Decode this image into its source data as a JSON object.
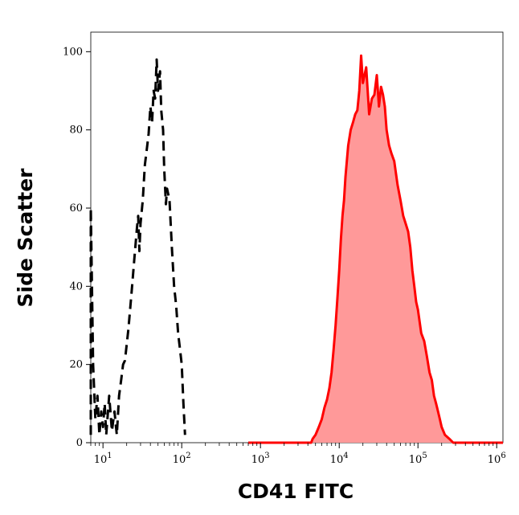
{
  "chart_data": {
    "type": "area",
    "title": "",
    "xlabel": "CD41 FITC",
    "ylabel": "Side Scatter",
    "x_scale": "log",
    "xlim": [
      7,
      1200000
    ],
    "ylim": [
      0,
      105
    ],
    "x_ticks": [
      {
        "value": 10,
        "base": "10",
        "exp": "1"
      },
      {
        "value": 100,
        "base": "10",
        "exp": "2"
      },
      {
        "value": 1000,
        "base": "10",
        "exp": "3"
      },
      {
        "value": 10000,
        "base": "10",
        "exp": "4"
      },
      {
        "value": 100000,
        "base": "10",
        "exp": "5"
      },
      {
        "value": 1000000,
        "base": "10",
        "exp": "6"
      }
    ],
    "y_ticks": [
      {
        "value": 0,
        "label": "0"
      },
      {
        "value": 20,
        "label": "20"
      },
      {
        "value": 40,
        "label": "40"
      },
      {
        "value": 60,
        "label": "60"
      },
      {
        "value": 80,
        "label": "80"
      },
      {
        "value": 100,
        "label": "100"
      }
    ],
    "grid": false,
    "series": [
      {
        "style": "dashed",
        "color": "#000000",
        "fill": "none",
        "points": [
          [
            7,
            2
          ],
          [
            7,
            60
          ],
          [
            7.5,
            20
          ],
          [
            8,
            6
          ],
          [
            8.5,
            12
          ],
          [
            9,
            2
          ],
          [
            9.5,
            8
          ],
          [
            10,
            4
          ],
          [
            10.5,
            10
          ],
          [
            11,
            2
          ],
          [
            12,
            12
          ],
          [
            13,
            3
          ],
          [
            14,
            8
          ],
          [
            15,
            2
          ],
          [
            16,
            12
          ],
          [
            17,
            16
          ],
          [
            18,
            20
          ],
          [
            19,
            21
          ],
          [
            21,
            29
          ],
          [
            23,
            38
          ],
          [
            25,
            47
          ],
          [
            27,
            55
          ],
          [
            28,
            58
          ],
          [
            29,
            49
          ],
          [
            30,
            56
          ],
          [
            32,
            62
          ],
          [
            34,
            71
          ],
          [
            36,
            75
          ],
          [
            38,
            79
          ],
          [
            40,
            86
          ],
          [
            42,
            82
          ],
          [
            44,
            90
          ],
          [
            46,
            88
          ],
          [
            48,
            98
          ],
          [
            50,
            90
          ],
          [
            53,
            95
          ],
          [
            55,
            85
          ],
          [
            58,
            80
          ],
          [
            60,
            70
          ],
          [
            63,
            61
          ],
          [
            65,
            65
          ],
          [
            70,
            62
          ],
          [
            75,
            50
          ],
          [
            80,
            40
          ],
          [
            85,
            35
          ],
          [
            90,
            28
          ],
          [
            95,
            24
          ],
          [
            100,
            20
          ],
          [
            105,
            10
          ],
          [
            110,
            2
          ]
        ]
      },
      {
        "style": "solid",
        "color": "#ff0000",
        "fill": "#ff9999",
        "points": [
          [
            700,
            0
          ],
          [
            4400,
            0
          ],
          [
            4600,
            1
          ],
          [
            5000,
            2
          ],
          [
            5500,
            4
          ],
          [
            6000,
            6
          ],
          [
            6500,
            9
          ],
          [
            7000,
            11
          ],
          [
            7500,
            14
          ],
          [
            8000,
            18
          ],
          [
            8500,
            24
          ],
          [
            9000,
            30
          ],
          [
            9500,
            37
          ],
          [
            10000,
            44
          ],
          [
            10500,
            52
          ],
          [
            11000,
            58
          ],
          [
            11500,
            62
          ],
          [
            12000,
            68
          ],
          [
            12500,
            72
          ],
          [
            13000,
            76
          ],
          [
            14000,
            80
          ],
          [
            15000,
            82
          ],
          [
            16000,
            84
          ],
          [
            17000,
            85
          ],
          [
            18000,
            90
          ],
          [
            19000,
            99
          ],
          [
            20000,
            92
          ],
          [
            22000,
            96
          ],
          [
            24000,
            84
          ],
          [
            26000,
            88
          ],
          [
            28000,
            89
          ],
          [
            30000,
            94
          ],
          [
            32000,
            86
          ],
          [
            34000,
            91
          ],
          [
            36000,
            89
          ],
          [
            38000,
            86
          ],
          [
            40000,
            80
          ],
          [
            43000,
            76
          ],
          [
            46000,
            74
          ],
          [
            50000,
            72
          ],
          [
            55000,
            66
          ],
          [
            60000,
            62
          ],
          [
            65000,
            58
          ],
          [
            70000,
            56
          ],
          [
            75000,
            54
          ],
          [
            80000,
            50
          ],
          [
            85000,
            44
          ],
          [
            90000,
            40
          ],
          [
            95000,
            36
          ],
          [
            100000,
            34
          ],
          [
            110000,
            28
          ],
          [
            120000,
            26
          ],
          [
            130000,
            22
          ],
          [
            140000,
            18
          ],
          [
            150000,
            16
          ],
          [
            160000,
            12
          ],
          [
            170000,
            10
          ],
          [
            180000,
            8
          ],
          [
            190000,
            6
          ],
          [
            200000,
            4
          ],
          [
            220000,
            2
          ],
          [
            250000,
            1
          ],
          [
            280000,
            0
          ],
          [
            1200000,
            0
          ]
        ]
      }
    ]
  }
}
